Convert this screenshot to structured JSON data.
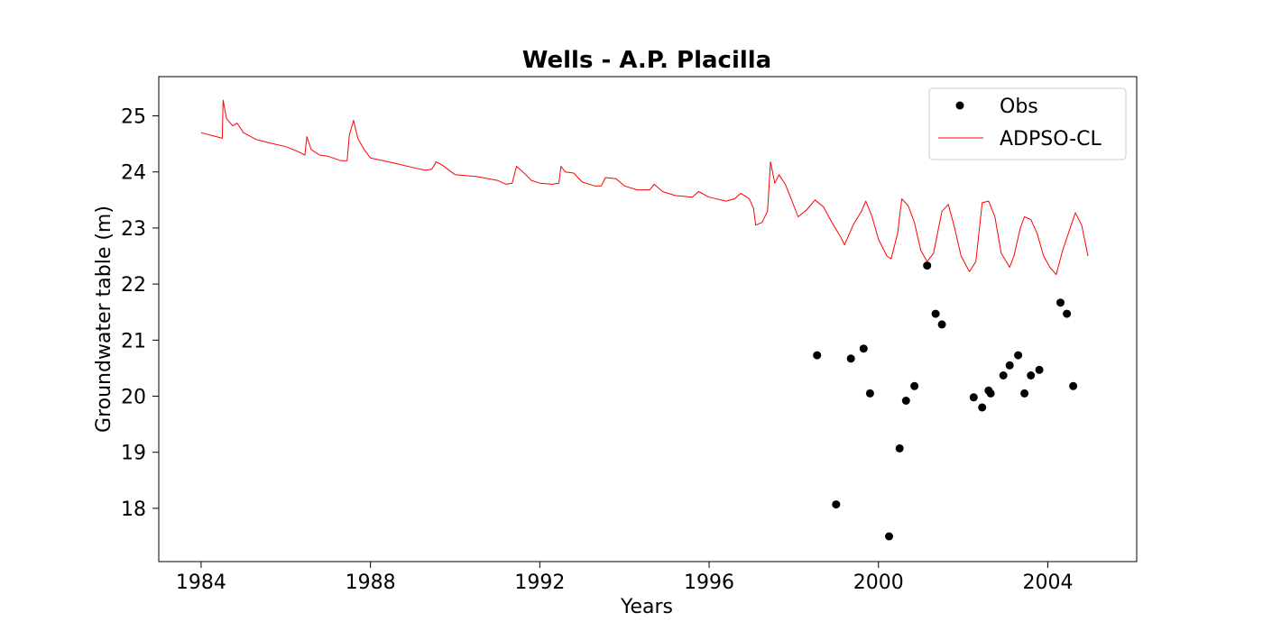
{
  "chart_data": {
    "type": "line",
    "title": "Wells - A.P. Placilla",
    "xlabel": "Years",
    "ylabel": "Groundwater table (m)",
    "xlim": [
      1983.0,
      2006.1
    ],
    "ylim": [
      17.05,
      25.7
    ],
    "x_ticks": [
      1984,
      1988,
      1992,
      1996,
      2000,
      2004
    ],
    "x_tick_labels": [
      "1984",
      "1988",
      "1992",
      "1996",
      "2000",
      "2004"
    ],
    "y_ticks": [
      18,
      19,
      20,
      21,
      22,
      23,
      24,
      25
    ],
    "y_tick_labels": [
      "18",
      "19",
      "20",
      "21",
      "22",
      "23",
      "24",
      "25"
    ],
    "grid": false,
    "legend": {
      "placement": "top-right",
      "entries": [
        "Obs",
        "ADPSO-CL"
      ]
    },
    "colors": {
      "model": "#ff0000",
      "obs": "#000000"
    },
    "series": [
      {
        "name": "Obs",
        "type": "scatter",
        "points": [
          [
            1998.55,
            20.73
          ],
          [
            1999.0,
            18.07
          ],
          [
            1999.35,
            20.67
          ],
          [
            1999.65,
            20.85
          ],
          [
            1999.8,
            20.05
          ],
          [
            2000.25,
            17.5
          ],
          [
            2000.5,
            19.07
          ],
          [
            2000.65,
            19.92
          ],
          [
            2000.85,
            20.18
          ],
          [
            2001.15,
            22.33
          ],
          [
            2001.35,
            21.47
          ],
          [
            2001.5,
            21.28
          ],
          [
            2002.25,
            19.98
          ],
          [
            2002.45,
            19.8
          ],
          [
            2002.6,
            20.1
          ],
          [
            2002.65,
            20.05
          ],
          [
            2002.95,
            20.37
          ],
          [
            2003.1,
            20.55
          ],
          [
            2003.3,
            20.73
          ],
          [
            2003.45,
            20.05
          ],
          [
            2003.6,
            20.37
          ],
          [
            2003.8,
            20.47
          ],
          [
            2004.3,
            21.67
          ],
          [
            2004.45,
            21.47
          ],
          [
            2004.6,
            20.18
          ]
        ]
      },
      {
        "name": "ADPSO-CL",
        "type": "line",
        "points": [
          [
            1984.0,
            24.7
          ],
          [
            1984.3,
            24.64
          ],
          [
            1984.5,
            24.6
          ],
          [
            1984.52,
            25.28
          ],
          [
            1984.6,
            24.95
          ],
          [
            1984.75,
            24.82
          ],
          [
            1984.85,
            24.87
          ],
          [
            1985.0,
            24.7
          ],
          [
            1985.3,
            24.58
          ],
          [
            1985.6,
            24.52
          ],
          [
            1986.0,
            24.45
          ],
          [
            1986.3,
            24.36
          ],
          [
            1986.45,
            24.3
          ],
          [
            1986.5,
            24.63
          ],
          [
            1986.6,
            24.4
          ],
          [
            1986.8,
            24.3
          ],
          [
            1987.0,
            24.28
          ],
          [
            1987.3,
            24.2
          ],
          [
            1987.45,
            24.2
          ],
          [
            1987.5,
            24.65
          ],
          [
            1987.6,
            24.92
          ],
          [
            1987.7,
            24.6
          ],
          [
            1987.85,
            24.4
          ],
          [
            1988.0,
            24.25
          ],
          [
            1988.3,
            24.2
          ],
          [
            1988.6,
            24.15
          ],
          [
            1989.0,
            24.08
          ],
          [
            1989.3,
            24.03
          ],
          [
            1989.45,
            24.05
          ],
          [
            1989.55,
            24.18
          ],
          [
            1989.7,
            24.12
          ],
          [
            1990.0,
            23.95
          ],
          [
            1990.5,
            23.92
          ],
          [
            1991.0,
            23.85
          ],
          [
            1991.2,
            23.78
          ],
          [
            1991.35,
            23.8
          ],
          [
            1991.45,
            24.1
          ],
          [
            1991.6,
            24.0
          ],
          [
            1991.8,
            23.85
          ],
          [
            1992.0,
            23.8
          ],
          [
            1992.3,
            23.78
          ],
          [
            1992.45,
            23.8
          ],
          [
            1992.5,
            24.1
          ],
          [
            1992.6,
            24.0
          ],
          [
            1992.8,
            23.98
          ],
          [
            1993.0,
            23.82
          ],
          [
            1993.3,
            23.75
          ],
          [
            1993.45,
            23.75
          ],
          [
            1993.55,
            23.9
          ],
          [
            1993.8,
            23.88
          ],
          [
            1994.0,
            23.75
          ],
          [
            1994.3,
            23.68
          ],
          [
            1994.6,
            23.68
          ],
          [
            1994.7,
            23.78
          ],
          [
            1994.9,
            23.65
          ],
          [
            1995.2,
            23.58
          ],
          [
            1995.6,
            23.55
          ],
          [
            1995.75,
            23.65
          ],
          [
            1996.0,
            23.55
          ],
          [
            1996.4,
            23.48
          ],
          [
            1996.6,
            23.52
          ],
          [
            1996.75,
            23.62
          ],
          [
            1996.95,
            23.52
          ],
          [
            1997.05,
            23.35
          ],
          [
            1997.1,
            23.05
          ],
          [
            1997.25,
            23.1
          ],
          [
            1997.38,
            23.3
          ],
          [
            1997.45,
            24.18
          ],
          [
            1997.55,
            23.8
          ],
          [
            1997.65,
            23.95
          ],
          [
            1997.8,
            23.78
          ],
          [
            1997.95,
            23.5
          ],
          [
            1998.1,
            23.2
          ],
          [
            1998.3,
            23.32
          ],
          [
            1998.5,
            23.5
          ],
          [
            1998.7,
            23.38
          ],
          [
            1998.9,
            23.1
          ],
          [
            1999.1,
            22.85
          ],
          [
            1999.2,
            22.7
          ],
          [
            1999.4,
            23.05
          ],
          [
            1999.6,
            23.3
          ],
          [
            1999.7,
            23.48
          ],
          [
            1999.85,
            23.2
          ],
          [
            2000.0,
            22.8
          ],
          [
            2000.2,
            22.5
          ],
          [
            2000.3,
            22.45
          ],
          [
            2000.45,
            22.9
          ],
          [
            2000.55,
            23.52
          ],
          [
            2000.7,
            23.4
          ],
          [
            2000.85,
            23.1
          ],
          [
            2001.0,
            22.6
          ],
          [
            2001.15,
            22.4
          ],
          [
            2001.3,
            22.55
          ],
          [
            2001.5,
            23.3
          ],
          [
            2001.65,
            23.42
          ],
          [
            2001.8,
            23.0
          ],
          [
            2001.95,
            22.5
          ],
          [
            2002.15,
            22.22
          ],
          [
            2002.3,
            22.4
          ],
          [
            2002.45,
            23.45
          ],
          [
            2002.6,
            23.48
          ],
          [
            2002.75,
            23.2
          ],
          [
            2002.9,
            22.55
          ],
          [
            2003.1,
            22.3
          ],
          [
            2003.2,
            22.5
          ],
          [
            2003.35,
            23.0
          ],
          [
            2003.45,
            23.2
          ],
          [
            2003.6,
            23.15
          ],
          [
            2003.75,
            22.9
          ],
          [
            2003.9,
            22.5
          ],
          [
            2004.05,
            22.3
          ],
          [
            2004.2,
            22.17
          ],
          [
            2004.35,
            22.6
          ],
          [
            2004.55,
            23.05
          ],
          [
            2004.65,
            23.27
          ],
          [
            2004.8,
            23.05
          ],
          [
            2004.95,
            22.5
          ]
        ]
      }
    ]
  }
}
